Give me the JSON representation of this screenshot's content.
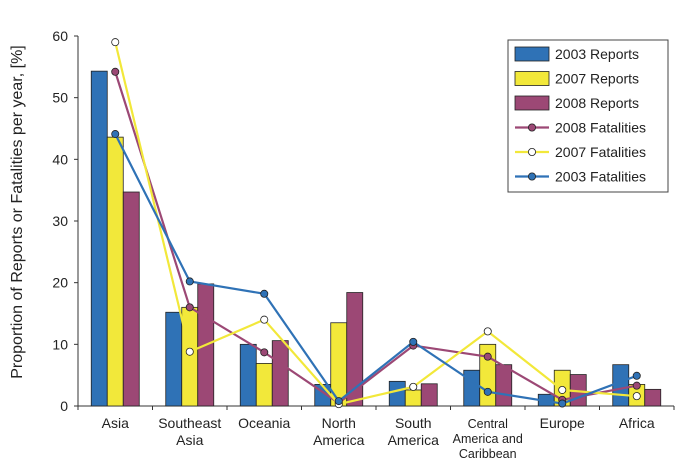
{
  "chart_data": {
    "type": "bar",
    "ylabel": "Proportion of Reports or Fatalities per year, [%]",
    "xlabel": "",
    "ylim": [
      0,
      60
    ],
    "yticks": [
      "0",
      "10",
      "20",
      "30",
      "40",
      "50",
      "60"
    ],
    "grid": false,
    "legend_position": "top-right",
    "categories": [
      {
        "lines": [
          "Asia"
        ]
      },
      {
        "lines": [
          "Southeast",
          "Asia"
        ]
      },
      {
        "lines": [
          "Oceania"
        ]
      },
      {
        "lines": [
          "North",
          "America"
        ]
      },
      {
        "lines": [
          "South",
          "America"
        ]
      },
      {
        "lines": [
          "Central",
          "America and",
          "Caribbean"
        ]
      },
      {
        "lines": [
          "Europe"
        ]
      },
      {
        "lines": [
          "Africa"
        ]
      }
    ],
    "bar_series": [
      {
        "name": "2003 Reports",
        "color": "#2f72b6",
        "values": [
          54.3,
          15.2,
          10.0,
          3.5,
          4.0,
          5.8,
          1.9,
          6.7
        ]
      },
      {
        "name": "2007 Reports",
        "color": "#f2e83a",
        "values": [
          43.6,
          16.0,
          6.9,
          13.5,
          2.6,
          10.0,
          5.8,
          3.5
        ]
      },
      {
        "name": "2008 Reports",
        "color": "#9c4875",
        "values": [
          34.7,
          19.8,
          10.6,
          18.4,
          3.6,
          6.7,
          5.1,
          2.7
        ]
      }
    ],
    "line_series": [
      {
        "name": "2008 Fatalities",
        "color": "#9c4875",
        "values": [
          54.2,
          16.0,
          8.7,
          0.5,
          9.8,
          8.0,
          1.0,
          3.3
        ]
      },
      {
        "name": "2007 Fatalities",
        "color": "#f2e83a",
        "values": [
          59.0,
          8.8,
          14.0,
          0.3,
          3.1,
          12.1,
          2.6,
          1.6
        ]
      },
      {
        "name": "2003 Fatalities",
        "color": "#2f72b6",
        "values": [
          44.1,
          20.2,
          18.2,
          0.8,
          10.4,
          2.3,
          0.4,
          4.9
        ]
      }
    ]
  }
}
